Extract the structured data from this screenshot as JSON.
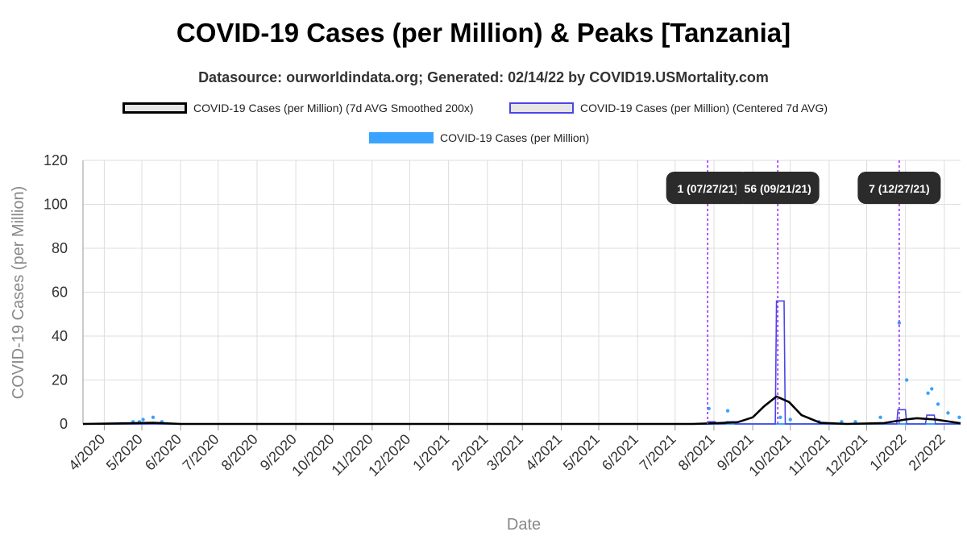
{
  "colors": {
    "smoothed": "#000000",
    "centered": "#4a46e6",
    "daily": "#3aa3ff",
    "peak_line": "#9b30ff",
    "peak_box": "#2b2b2b",
    "grid": "#dddddd"
  },
  "chart_data": {
    "type": "line",
    "title": "COVID-19 Cases (per Million) & Peaks [Tanzania]",
    "subtitle": "Datasource: ourworldindata.org; Generated: 02/14/22 by COVID19.USMortality.com",
    "xlabel": "Date",
    "ylabel": "COVID-19 Cases (per Million)",
    "ylim": [
      0,
      120
    ],
    "y_ticks": [
      "0",
      "20",
      "40",
      "60",
      "80",
      "100",
      "120"
    ],
    "x_range": [
      "2020-03-15",
      "2022-02-14"
    ],
    "x_ticks": [
      {
        "date": "2020-04-01",
        "label": "4/2020"
      },
      {
        "date": "2020-05-01",
        "label": "5/2020"
      },
      {
        "date": "2020-06-01",
        "label": "6/2020"
      },
      {
        "date": "2020-07-01",
        "label": "7/2020"
      },
      {
        "date": "2020-08-01",
        "label": "8/2020"
      },
      {
        "date": "2020-09-01",
        "label": "9/2020"
      },
      {
        "date": "2020-10-01",
        "label": "10/2020"
      },
      {
        "date": "2020-11-01",
        "label": "11/2020"
      },
      {
        "date": "2020-12-01",
        "label": "12/2020"
      },
      {
        "date": "2021-01-01",
        "label": "1/2021"
      },
      {
        "date": "2021-02-01",
        "label": "2/2021"
      },
      {
        "date": "2021-03-01",
        "label": "3/2021"
      },
      {
        "date": "2021-04-01",
        "label": "4/2021"
      },
      {
        "date": "2021-05-01",
        "label": "5/2021"
      },
      {
        "date": "2021-06-01",
        "label": "6/2021"
      },
      {
        "date": "2021-07-01",
        "label": "7/2021"
      },
      {
        "date": "2021-08-01",
        "label": "8/2021"
      },
      {
        "date": "2021-09-01",
        "label": "9/2021"
      },
      {
        "date": "2021-10-01",
        "label": "10/2021"
      },
      {
        "date": "2021-11-01",
        "label": "11/2021"
      },
      {
        "date": "2021-12-01",
        "label": "12/2021"
      },
      {
        "date": "2022-01-01",
        "label": "1/2022"
      },
      {
        "date": "2022-02-01",
        "label": "2/2022"
      }
    ],
    "legend": [
      {
        "label": "COVID-19 Cases (per Million) (7d AVG Smoothed 200x)"
      },
      {
        "label": "COVID-19 Cases (per Million) (Centered 7d AVG)"
      },
      {
        "label": "COVID-19 Cases (per Million)"
      }
    ],
    "series": [
      {
        "name": "COVID-19 Cases (per Million) (7d AVG Smoothed 200x)",
        "points": [
          [
            "2020-03-15",
            0
          ],
          [
            "2020-04-20",
            0.3
          ],
          [
            "2020-05-10",
            0.5
          ],
          [
            "2020-06-01",
            0
          ],
          [
            "2021-07-15",
            0
          ],
          [
            "2021-08-01",
            0.3
          ],
          [
            "2021-08-20",
            0.8
          ],
          [
            "2021-09-01",
            3
          ],
          [
            "2021-09-10",
            8
          ],
          [
            "2021-09-20",
            12.5
          ],
          [
            "2021-09-30",
            10
          ],
          [
            "2021-10-10",
            4
          ],
          [
            "2021-10-25",
            0.5
          ],
          [
            "2021-11-15",
            0
          ],
          [
            "2021-12-15",
            0.4
          ],
          [
            "2022-01-01",
            2
          ],
          [
            "2022-01-10",
            2.6
          ],
          [
            "2022-01-25",
            2
          ],
          [
            "2022-02-14",
            0.3
          ]
        ]
      },
      {
        "name": "COVID-19 Cases (per Million) (Centered 7d AVG)",
        "points": [
          [
            "2020-03-15",
            0
          ],
          [
            "2021-07-26",
            0
          ],
          [
            "2021-07-27",
            1
          ],
          [
            "2021-08-02",
            1
          ],
          [
            "2021-08-03",
            0
          ],
          [
            "2021-08-10",
            0
          ],
          [
            "2021-08-11",
            1
          ],
          [
            "2021-08-17",
            1
          ],
          [
            "2021-08-18",
            0
          ],
          [
            "2021-09-19",
            0
          ],
          [
            "2021-09-20",
            56
          ],
          [
            "2021-09-26",
            56
          ],
          [
            "2021-09-27",
            0
          ],
          [
            "2021-12-25",
            0
          ],
          [
            "2021-12-26",
            6.5
          ],
          [
            "2022-01-01",
            6.5
          ],
          [
            "2022-01-02",
            0
          ],
          [
            "2022-01-17",
            0
          ],
          [
            "2022-01-18",
            4
          ],
          [
            "2022-01-24",
            4
          ],
          [
            "2022-01-25",
            0
          ],
          [
            "2022-02-14",
            0
          ]
        ]
      },
      {
        "name": "COVID-19 Cases (per Million)",
        "points": [
          [
            "2020-04-24",
            1
          ],
          [
            "2020-04-29",
            1
          ],
          [
            "2020-05-02",
            2
          ],
          [
            "2020-05-10",
            3
          ],
          [
            "2020-05-17",
            1
          ],
          [
            "2021-07-28",
            7
          ],
          [
            "2021-08-12",
            6
          ],
          [
            "2021-09-23",
            3
          ],
          [
            "2021-10-01",
            2
          ],
          [
            "2021-10-24",
            1
          ],
          [
            "2021-11-11",
            1
          ],
          [
            "2021-11-22",
            1
          ],
          [
            "2021-12-12",
            3
          ],
          [
            "2021-12-27",
            46
          ],
          [
            "2022-01-02",
            20
          ],
          [
            "2022-01-19",
            14
          ],
          [
            "2022-01-22",
            16
          ],
          [
            "2022-01-27",
            9
          ],
          [
            "2022-02-04",
            5
          ],
          [
            "2022-02-13",
            3
          ]
        ]
      }
    ],
    "peaks": [
      {
        "date": "2021-07-27",
        "label": "1 (07/27/21)"
      },
      {
        "date": "2021-09-21",
        "label": "56 (09/21/21)"
      },
      {
        "date": "2021-12-27",
        "label": "7 (12/27/21)"
      }
    ]
  }
}
